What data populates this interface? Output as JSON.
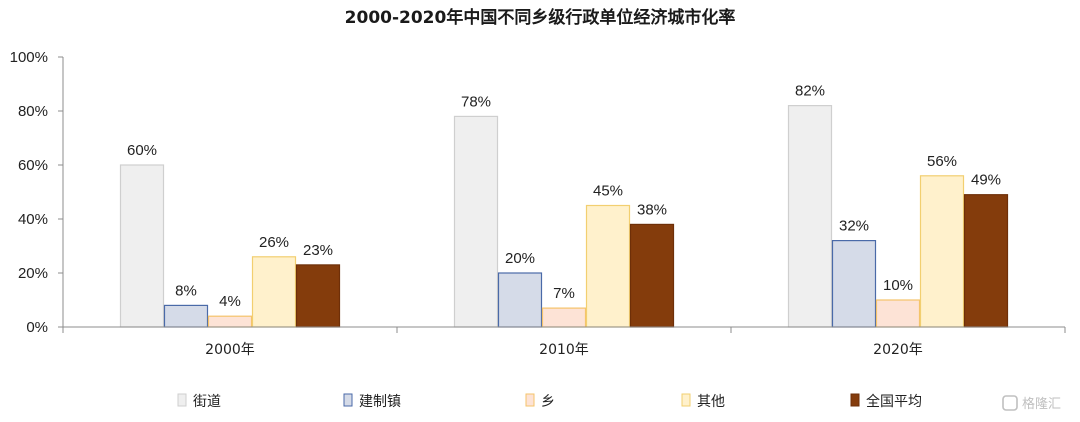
{
  "chart_data": {
    "type": "bar",
    "title": "2000-2020年中国不同乡级行政单位经济城市化率",
    "categories": [
      "2000年",
      "2010年",
      "2020年"
    ],
    "ylim": [
      0,
      100
    ],
    "yticks": [
      "0%",
      "20%",
      "40%",
      "60%",
      "80%",
      "100%"
    ],
    "grid": false,
    "legend_position": "bottom",
    "series": [
      {
        "name": "街道",
        "values": [
          60,
          78,
          82
        ],
        "labels": [
          "60%",
          "78%",
          "82%"
        ],
        "fill": "#efefef",
        "stroke": "#cfcfcf"
      },
      {
        "name": "建制镇",
        "values": [
          8,
          20,
          32
        ],
        "labels": [
          "8%",
          "20%",
          "32%"
        ],
        "fill": "#d5dbe8",
        "stroke": "#4a6aa8"
      },
      {
        "name": "乡",
        "values": [
          4,
          7,
          10
        ],
        "labels": [
          "4%",
          "7%",
          "10%"
        ],
        "fill": "#fde3d6",
        "stroke": "#f5c36a"
      },
      {
        "name": "其他",
        "values": [
          26,
          45,
          56
        ],
        "labels": [
          "26%",
          "45%",
          "56%"
        ],
        "fill": "#fff1cc",
        "stroke": "#f2cf70"
      },
      {
        "name": "全国平均",
        "values": [
          23,
          38,
          49
        ],
        "labels": [
          "23%",
          "38%",
          "49%"
        ],
        "fill": "#843c0c",
        "stroke": "#6e2f08"
      }
    ]
  },
  "watermark": {
    "text": "格隆汇",
    "icon": "gelonghui-logo-icon"
  }
}
